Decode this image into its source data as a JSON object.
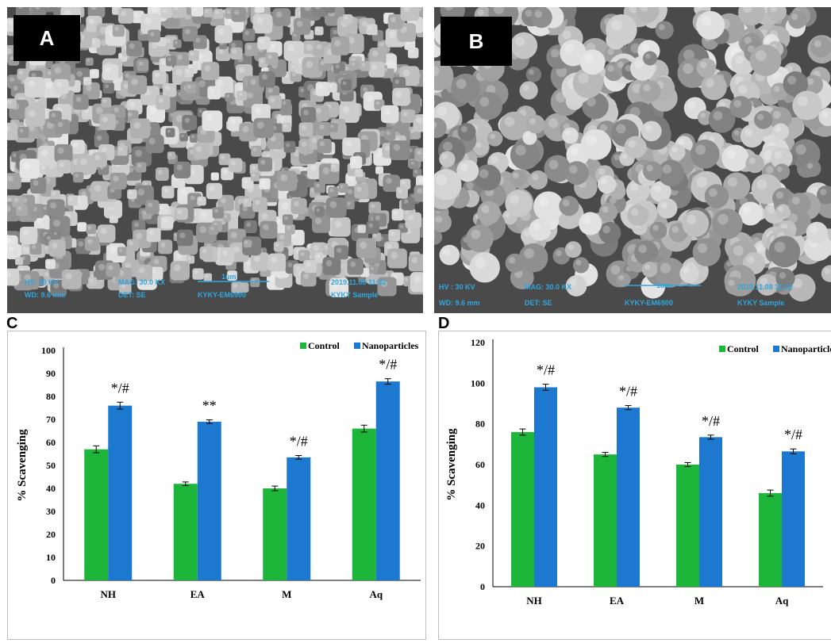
{
  "panels": {
    "a": {
      "label": "A",
      "sem_info": [
        "HV: 30 KV",
        "MAG: 30.0 KX",
        "1um",
        "2019.11.08 11:32",
        "WD: 9.6 mm",
        "DET: SE",
        "KYKY-EM6900",
        "KYKY Sample"
      ]
    },
    "b": {
      "label": "B",
      "sem_info": [
        "HV : 30 KV",
        "MAG: 30.0 KX",
        "1um",
        "2019.11.08 11:32",
        "WD: 9.6 mm",
        "DET: SE",
        "KYKY-EM6900",
        "KYKY Sample"
      ]
    },
    "c": {
      "label": "C"
    },
    "d": {
      "label": "D"
    }
  },
  "colors": {
    "control": "#1db53a",
    "nanoparticles": "#1c79cf"
  },
  "chart_data": [
    {
      "id": "C",
      "type": "bar",
      "categories": [
        "NH",
        "EA",
        "M",
        "Aq"
      ],
      "series": [
        {
          "name": "Control",
          "values": [
            57,
            42,
            40,
            66
          ],
          "errors": [
            1.5,
            0.8,
            1.0,
            1.5
          ]
        },
        {
          "name": "Nanoparticles",
          "values": [
            76,
            69,
            53.5,
            86.5
          ],
          "errors": [
            1.5,
            0.8,
            0.8,
            1.2
          ]
        }
      ],
      "annotations": [
        "*/#",
        "**",
        "*/#",
        "*/#"
      ],
      "ylabel": "% Scavenging",
      "ylim": [
        0,
        100
      ],
      "yticks": [
        0,
        10,
        20,
        30,
        40,
        50,
        60,
        70,
        80,
        90,
        100
      ],
      "legend": "top-right",
      "grid": false
    },
    {
      "id": "D",
      "type": "bar",
      "categories": [
        "NH",
        "EA",
        "M",
        "Aq"
      ],
      "series": [
        {
          "name": "Control",
          "values": [
            76,
            65,
            60,
            46
          ],
          "errors": [
            1.5,
            1.0,
            1.0,
            1.5
          ]
        },
        {
          "name": "Nanoparticles",
          "values": [
            98,
            88,
            73.5,
            66.5
          ],
          "errors": [
            1.5,
            1.0,
            1.0,
            1.2
          ]
        }
      ],
      "annotations": [
        "*/#",
        "*/#",
        "*/#",
        "*/#"
      ],
      "ylabel": "% Scavenging",
      "ylim": [
        0,
        120
      ],
      "yticks": [
        0,
        20,
        40,
        60,
        80,
        100,
        120
      ],
      "legend": "top-right",
      "grid": false
    }
  ]
}
